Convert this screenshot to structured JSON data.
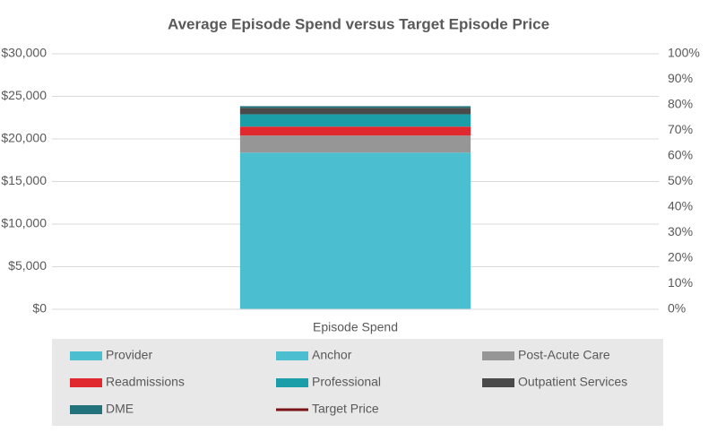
{
  "chart_data": {
    "type": "bar",
    "stacked": true,
    "title": "Average Episode Spend versus Target Episode Price",
    "categories": [
      "Episode Spend"
    ],
    "series": [
      {
        "name": "Provider",
        "color": "#4bbfcf",
        "values": [
          18400
        ]
      },
      {
        "name": "Anchor",
        "color": "#4bbfcf",
        "values": [
          0
        ]
      },
      {
        "name": "Post-Acute Care",
        "color": "#969696",
        "values": [
          2000
        ]
      },
      {
        "name": "Readmissions",
        "color": "#e0282f",
        "values": [
          1050
        ]
      },
      {
        "name": "Professional",
        "color": "#1b9ea8",
        "values": [
          1450
        ]
      },
      {
        "name": "Outpatient Services",
        "color": "#4a4a4a",
        "values": [
          750
        ]
      },
      {
        "name": "DME",
        "color": "#22737b",
        "values": [
          200
        ]
      },
      {
        "name": "Target Price",
        "color": "#7b1515",
        "type": "line",
        "values": [
          null
        ]
      }
    ],
    "ylim": [
      0,
      30000
    ],
    "yticks": [
      {
        "value": 0,
        "label": "$0"
      },
      {
        "value": 5000,
        "label": "$5,000"
      },
      {
        "value": 10000,
        "label": "$10,000"
      },
      {
        "value": 15000,
        "label": "$15,000"
      },
      {
        "value": 20000,
        "label": "$20,000"
      },
      {
        "value": 25000,
        "label": "$25,000"
      },
      {
        "value": 30000,
        "label": "$30,000"
      }
    ],
    "y2lim": [
      0,
      100
    ],
    "y2ticks": [
      {
        "value": 0,
        "label": "0%"
      },
      {
        "value": 10,
        "label": "10%"
      },
      {
        "value": 20,
        "label": "20%"
      },
      {
        "value": 30,
        "label": "30%"
      },
      {
        "value": 40,
        "label": "40%"
      },
      {
        "value": 50,
        "label": "50%"
      },
      {
        "value": 60,
        "label": "60%"
      },
      {
        "value": 70,
        "label": "70%"
      },
      {
        "value": 80,
        "label": "80%"
      },
      {
        "value": 90,
        "label": "90%"
      },
      {
        "value": 100,
        "label": "100%"
      }
    ],
    "grid": true,
    "legend": "bottom"
  }
}
